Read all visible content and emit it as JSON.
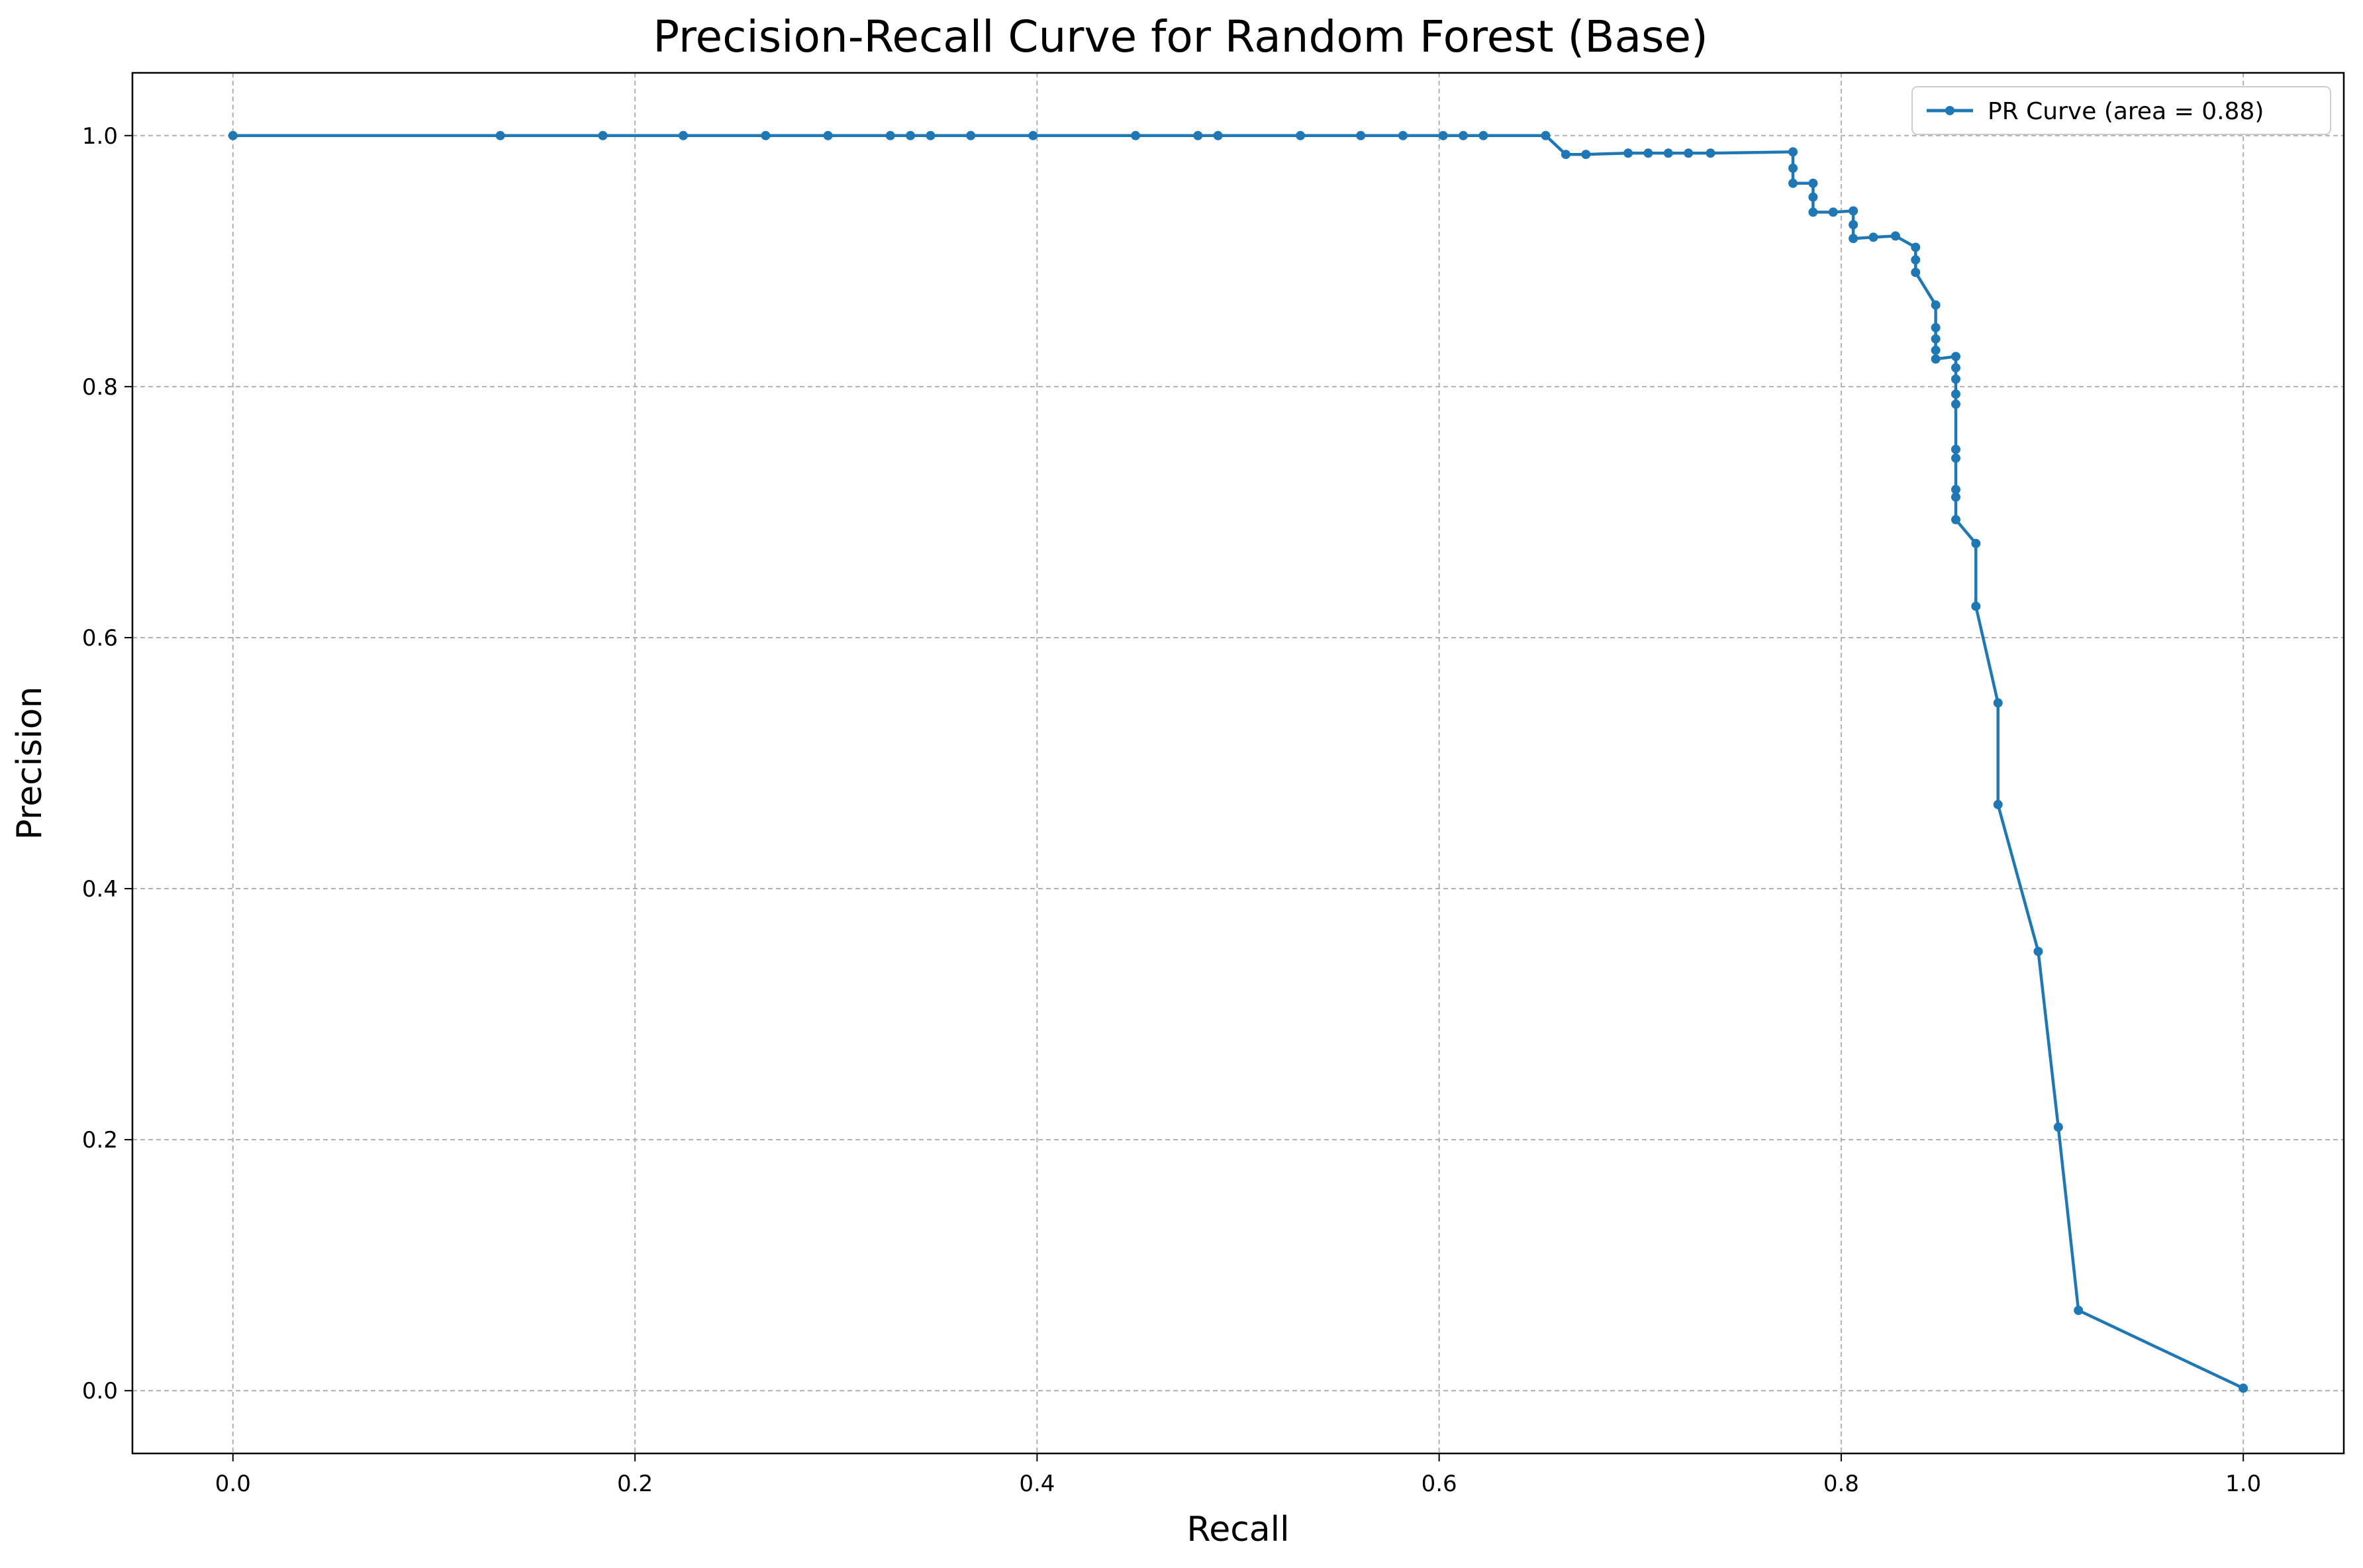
{
  "chart_data": {
    "type": "line",
    "title": "Precision-Recall Curve for Random Forest (Base)",
    "xlabel": "Recall",
    "ylabel": "Precision",
    "xlim": [
      -0.05,
      1.05
    ],
    "ylim": [
      -0.05,
      1.05
    ],
    "xticks": [
      "0.0",
      "0.2",
      "0.4",
      "0.6",
      "0.8",
      "1.0"
    ],
    "yticks": [
      "0.0",
      "0.2",
      "0.4",
      "0.6",
      "0.8",
      "1.0"
    ],
    "grid": true,
    "legend_position": "top-right",
    "series": [
      {
        "name": "PR Curve (area = 0.88)",
        "color": "#1f77b4",
        "marker": "circle",
        "points": [
          [
            0.0,
            1.0
          ],
          [
            0.133,
            1.0
          ],
          [
            0.184,
            1.0
          ],
          [
            0.224,
            1.0
          ],
          [
            0.265,
            1.0
          ],
          [
            0.296,
            1.0
          ],
          [
            0.327,
            1.0
          ],
          [
            0.337,
            1.0
          ],
          [
            0.347,
            1.0
          ],
          [
            0.367,
            1.0
          ],
          [
            0.398,
            1.0
          ],
          [
            0.449,
            1.0
          ],
          [
            0.48,
            1.0
          ],
          [
            0.49,
            1.0
          ],
          [
            0.531,
            1.0
          ],
          [
            0.561,
            1.0
          ],
          [
            0.582,
            1.0
          ],
          [
            0.602,
            1.0
          ],
          [
            0.612,
            1.0
          ],
          [
            0.622,
            1.0
          ],
          [
            0.653,
            1.0
          ],
          [
            0.663,
            0.985
          ],
          [
            0.673,
            0.985
          ],
          [
            0.694,
            0.986
          ],
          [
            0.704,
            0.986
          ],
          [
            0.714,
            0.986
          ],
          [
            0.724,
            0.986
          ],
          [
            0.735,
            0.986
          ],
          [
            0.776,
            0.987
          ],
          [
            0.776,
            0.974
          ],
          [
            0.776,
            0.962
          ],
          [
            0.786,
            0.962
          ],
          [
            0.786,
            0.951
          ],
          [
            0.786,
            0.939
          ],
          [
            0.796,
            0.939
          ],
          [
            0.806,
            0.94
          ],
          [
            0.806,
            0.929
          ],
          [
            0.806,
            0.918
          ],
          [
            0.816,
            0.919
          ],
          [
            0.827,
            0.92
          ],
          [
            0.837,
            0.911
          ],
          [
            0.837,
            0.901
          ],
          [
            0.837,
            0.891
          ],
          [
            0.847,
            0.865
          ],
          [
            0.847,
            0.847
          ],
          [
            0.847,
            0.838
          ],
          [
            0.847,
            0.829
          ],
          [
            0.847,
            0.822
          ],
          [
            0.857,
            0.824
          ],
          [
            0.857,
            0.815
          ],
          [
            0.857,
            0.806
          ],
          [
            0.857,
            0.794
          ],
          [
            0.857,
            0.786
          ],
          [
            0.857,
            0.75
          ],
          [
            0.857,
            0.743
          ],
          [
            0.857,
            0.718
          ],
          [
            0.857,
            0.712
          ],
          [
            0.857,
            0.694
          ],
          [
            0.867,
            0.675
          ],
          [
            0.867,
            0.625
          ],
          [
            0.878,
            0.548
          ],
          [
            0.878,
            0.467
          ],
          [
            0.898,
            0.35
          ],
          [
            0.908,
            0.21
          ],
          [
            0.918,
            0.064
          ],
          [
            1.0,
            0.002
          ]
        ]
      }
    ]
  }
}
